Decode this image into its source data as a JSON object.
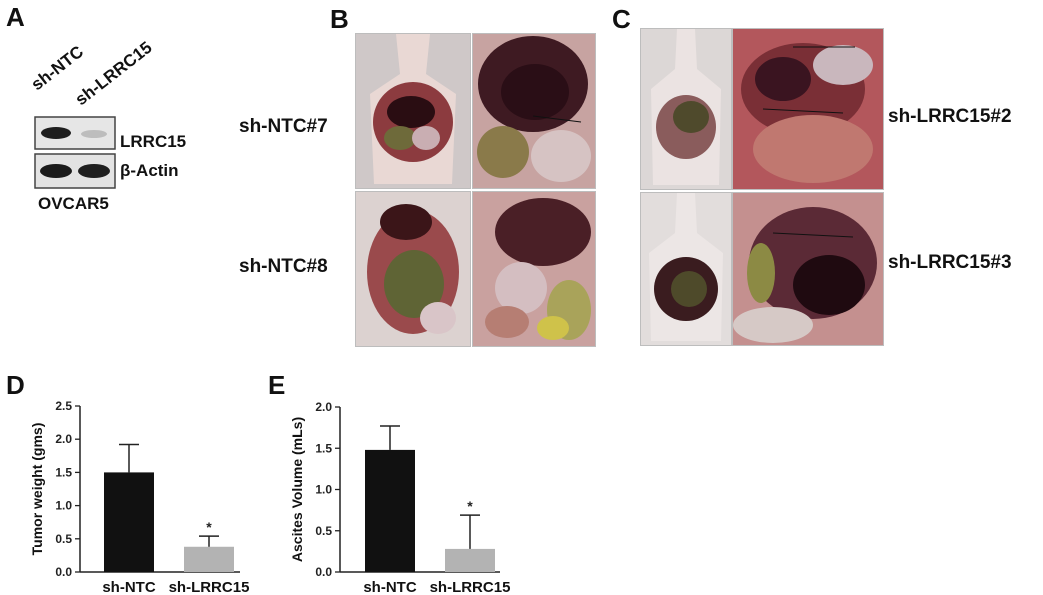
{
  "panels": {
    "A": {
      "letter": "A",
      "lanes": [
        "sh-NTC",
        "sh-LRRC15"
      ],
      "bands": [
        "LRRC15",
        "β-Actin"
      ],
      "cell_line": "OVCAR5"
    },
    "B": {
      "letter": "B",
      "labels": [
        "sh-NTC#7",
        "sh-NTC#8"
      ]
    },
    "C": {
      "letter": "C",
      "labels": [
        "sh-LRRC15#2",
        "sh-LRRC15#3"
      ]
    },
    "D": {
      "letter": "D"
    },
    "E": {
      "letter": "E"
    }
  },
  "colors": {
    "bar_control": "#111111",
    "bar_knockdown": "#b3b3b3"
  },
  "chart_data": [
    {
      "id": "D",
      "type": "bar",
      "categories": [
        "sh-NTC",
        "sh-LRRC15"
      ],
      "values": [
        1.5,
        0.38
      ],
      "errors": [
        0.42,
        0.16
      ],
      "significance": [
        "",
        "*"
      ],
      "ylabel": "Tumor weight (gms)",
      "ylim": [
        0,
        2.5
      ],
      "yticks": [
        "0.0",
        "0.5",
        "1.0",
        "1.5",
        "2.0",
        "2.5"
      ]
    },
    {
      "id": "E",
      "type": "bar",
      "categories": [
        "sh-NTC",
        "sh-LRRC15"
      ],
      "values": [
        1.48,
        0.28
      ],
      "errors": [
        0.29,
        0.41
      ],
      "significance": [
        "",
        "*"
      ],
      "ylabel": "Ascites Volume (mLs)",
      "ylim": [
        0,
        2.0
      ],
      "yticks": [
        "0.0",
        "0.5",
        "1.0",
        "1.5",
        "2.0"
      ]
    }
  ]
}
